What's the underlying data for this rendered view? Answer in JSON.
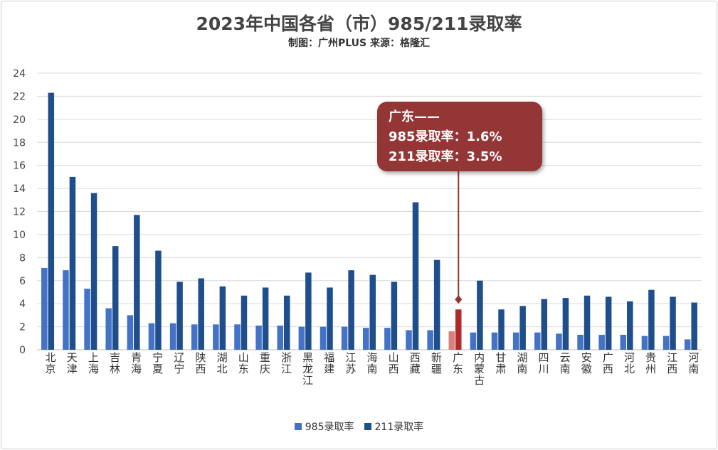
{
  "header": {
    "title": "2023年中国各省（市）985/211录取率",
    "subtitle": "制图：广州PLUS 来源：格隆汇"
  },
  "colors": {
    "series_985": "#4472c4",
    "series_211": "#1f4e8c",
    "highlight_985": "#d9827d",
    "highlight_211": "#b02a2a",
    "callout": "#943536",
    "grid": "#d9d9d9"
  },
  "callout": {
    "line1": "广东——",
    "line2": "985录取率：1.6%",
    "line3": "211录取率：3.5%"
  },
  "legend": {
    "items": [
      "985录取率",
      "211录取率"
    ]
  },
  "chart_data": {
    "type": "bar",
    "title": "2023年中国各省（市）985/211录取率",
    "subtitle": "制图：广州PLUS 来源：格隆汇",
    "categories": [
      "北京",
      "天津",
      "上海",
      "吉林",
      "青海",
      "宁夏",
      "辽宁",
      "陕西",
      "湖北",
      "山东",
      "重庆",
      "浙江",
      "黑龙江",
      "福建",
      "江苏",
      "海南",
      "山西",
      "西藏",
      "新疆",
      "广东",
      "内蒙古",
      "甘肃",
      "湖南",
      "四川",
      "云南",
      "安徽",
      "广西",
      "河北",
      "贵州",
      "江西",
      "河南"
    ],
    "series": [
      {
        "name": "985录取率",
        "values": [
          7.1,
          6.9,
          5.3,
          3.6,
          3.0,
          2.3,
          2.3,
          2.2,
          2.2,
          2.2,
          2.1,
          2.1,
          2.0,
          2.0,
          2.0,
          1.9,
          1.9,
          1.7,
          1.7,
          1.6,
          1.5,
          1.5,
          1.5,
          1.5,
          1.4,
          1.3,
          1.3,
          1.3,
          1.2,
          1.2,
          0.9
        ]
      },
      {
        "name": "211录取率",
        "values": [
          22.3,
          15.0,
          13.6,
          9.0,
          11.7,
          8.6,
          5.9,
          6.2,
          5.5,
          4.7,
          5.4,
          4.7,
          6.7,
          5.4,
          6.9,
          6.5,
          5.9,
          12.8,
          7.8,
          3.5,
          6.0,
          3.5,
          3.8,
          4.4,
          4.5,
          4.7,
          4.6,
          4.2,
          5.2,
          4.6,
          4.1
        ]
      }
    ],
    "highlight_category": "广东",
    "ylim": [
      0,
      24
    ],
    "yticks": [
      0,
      2,
      4,
      6,
      8,
      10,
      12,
      14,
      16,
      18,
      20,
      22,
      24
    ],
    "grid": true,
    "legend_position": "bottom"
  }
}
